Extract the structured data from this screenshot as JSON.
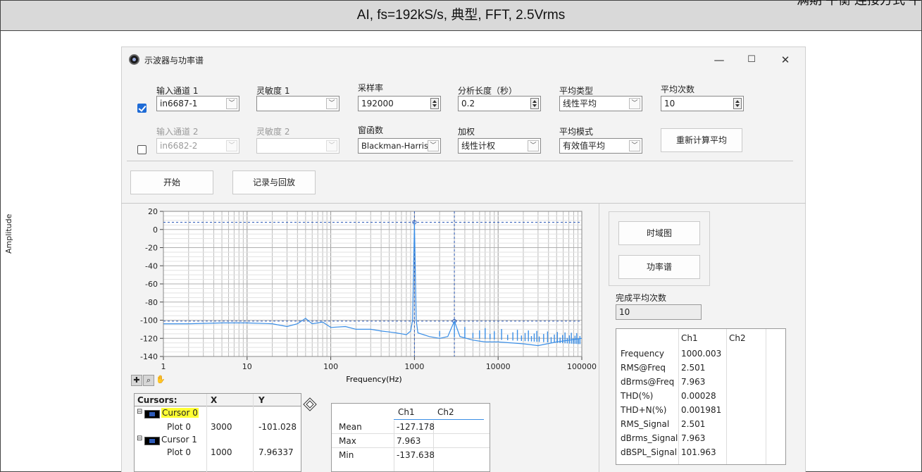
{
  "doc": {
    "header": "AI, fs=192kS/s,  典型, FFT, 2.5Vrms",
    "cropped_text": "满期 平衡 连接方式 平"
  },
  "window": {
    "title": "示波器与功率谱",
    "minimize": "—",
    "maximize": "☐",
    "close": "✕"
  },
  "controls": {
    "row1": {
      "channel_checked": true,
      "input_label": "输入通道 1",
      "input_value": "in6687-1",
      "sens_label": "灵敏度 1",
      "sens_value": "",
      "rate_label": "采样率",
      "rate_value": "192000",
      "length_label": "分析长度（秒）",
      "length_value": "0.2",
      "avgtype_label": "平均类型",
      "avgtype_value": "线性平均",
      "avgcount_label": "平均次数",
      "avgcount_value": "10"
    },
    "row2": {
      "channel_checked": false,
      "input_label": "输入通道 2",
      "input_value": "in6682-2",
      "sens_label": "灵敏度 2",
      "sens_value": "",
      "window_label": "窗函数",
      "window_value": "Blackman-Harris",
      "weight_label": "加权",
      "weight_value": "线性计权",
      "avgmode_label": "平均模式",
      "avgmode_value": "有效值平均",
      "recalc_button": "重新计算平均"
    },
    "start_button": "开始",
    "record_button": "记录与回放"
  },
  "chart_data": {
    "type": "line",
    "title": "",
    "xlabel": "Frequency(Hz)",
    "ylabel": "Amplitude",
    "xscale": "log",
    "xlim": [
      1,
      100000
    ],
    "ylim": [
      -140,
      20
    ],
    "xticks": [
      "1",
      "10",
      "100",
      "1000",
      "10000",
      "100000"
    ],
    "yticks": [
      "20",
      "0",
      "-20",
      "-40",
      "-60",
      "-80",
      "-100",
      "-120",
      "-140"
    ],
    "grid": true,
    "series": [
      {
        "color": "#3a8ee6",
        "x": [
          1,
          2,
          5,
          10,
          20,
          30,
          40,
          50,
          60,
          80,
          100,
          150,
          200,
          300,
          400,
          500,
          600,
          700,
          800,
          900,
          950,
          1000,
          1050,
          1100,
          1500,
          2000,
          2500,
          3000,
          3500,
          5000,
          7000,
          10000,
          20000,
          30000,
          50000,
          100000
        ],
        "y": [
          -104,
          -104,
          -103,
          -103,
          -104,
          -107,
          -104,
          -98,
          -104,
          -102,
          -108,
          -107,
          -110,
          -110,
          -112,
          -113,
          -114,
          -115,
          -116,
          -112,
          -100,
          8,
          -100,
          -114,
          -118,
          -120,
          -118,
          -101,
          -118,
          -122,
          -124,
          -124,
          -126,
          -128,
          -124,
          -120
        ]
      }
    ],
    "cursors": [
      {
        "name": "Cursor 0",
        "x": 3000,
        "y": -101.028
      },
      {
        "name": "Cursor 1",
        "x": 1000,
        "y": 7.96337
      }
    ]
  },
  "cursor_table": {
    "headers": [
      "Cursors:",
      "X",
      "Y"
    ],
    "rows": [
      {
        "name": "Cursor 0",
        "plot": "Plot 0",
        "x": "3000",
        "y": "-101.028"
      },
      {
        "name": "Cursor 1",
        "plot": "Plot 0",
        "x": "1000",
        "y": "7.96337"
      }
    ]
  },
  "stats_table": {
    "headers": [
      "Ch1",
      "Ch2"
    ],
    "rows": [
      {
        "label": "Mean",
        "ch1": "-127.178",
        "ch2": ""
      },
      {
        "label": "Max",
        "ch1": "7.963",
        "ch2": ""
      },
      {
        "label": "Min",
        "ch1": "-137.638",
        "ch2": ""
      }
    ]
  },
  "side": {
    "time_button": "时域图",
    "power_button": "功率谱",
    "avg_done_label": "完成平均次数",
    "avg_done_value": "10"
  },
  "measurements": {
    "headers": [
      "Ch1",
      "Ch2"
    ],
    "rows": [
      {
        "label": "Frequency",
        "ch1": "1000.003",
        "ch2": ""
      },
      {
        "label": "RMS@Freq",
        "ch1": "2.501",
        "ch2": ""
      },
      {
        "label": "dBrms@Freq",
        "ch1": "7.963",
        "ch2": ""
      },
      {
        "label": "THD(%)",
        "ch1": "0.00028",
        "ch2": ""
      },
      {
        "label": "THD+N(%)",
        "ch1": "0.001981",
        "ch2": ""
      },
      {
        "label": "RMS_Signal",
        "ch1": "2.501",
        "ch2": ""
      },
      {
        "label": "dBrms_Signal",
        "ch1": "7.963",
        "ch2": ""
      },
      {
        "label": "dBSPL_Signal",
        "ch1": "101.963",
        "ch2": ""
      }
    ]
  },
  "icons": {
    "app": "scope-app-icon",
    "chevron": "chevron-down-icon",
    "tools": [
      "crosshair-icon",
      "zoom-icon",
      "pan-hand-icon"
    ],
    "diamond": "cursor-move-icon"
  }
}
